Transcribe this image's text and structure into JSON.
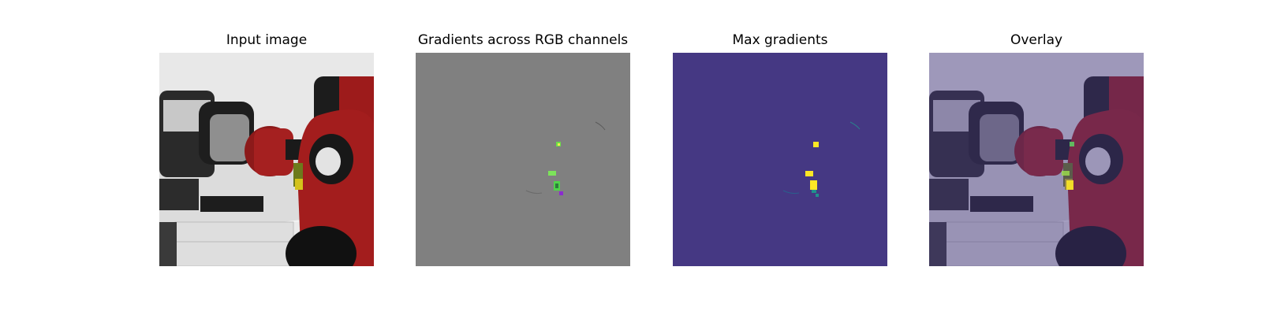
{
  "figure": {
    "panels": [
      {
        "id": "input",
        "title": "Input image",
        "content": "photo-robot-arm"
      },
      {
        "id": "gradients",
        "title": "Gradients across RGB channels",
        "content": "gradient-map-rgb"
      },
      {
        "id": "max",
        "title": "Max gradients",
        "content": "gradient-map-max"
      },
      {
        "id": "overlay",
        "title": "Overlay",
        "content": "photo-with-gradient-overlay"
      }
    ],
    "colors": {
      "gradient_background": "#808080",
      "max_background": "#453883",
      "highlight_yellow": "#fde725",
      "highlight_green": "#5ec962",
      "highlight_teal": "#21918c",
      "highlight_purple": "#8b2bd0",
      "overlay_tint": "#b4aee0"
    }
  }
}
